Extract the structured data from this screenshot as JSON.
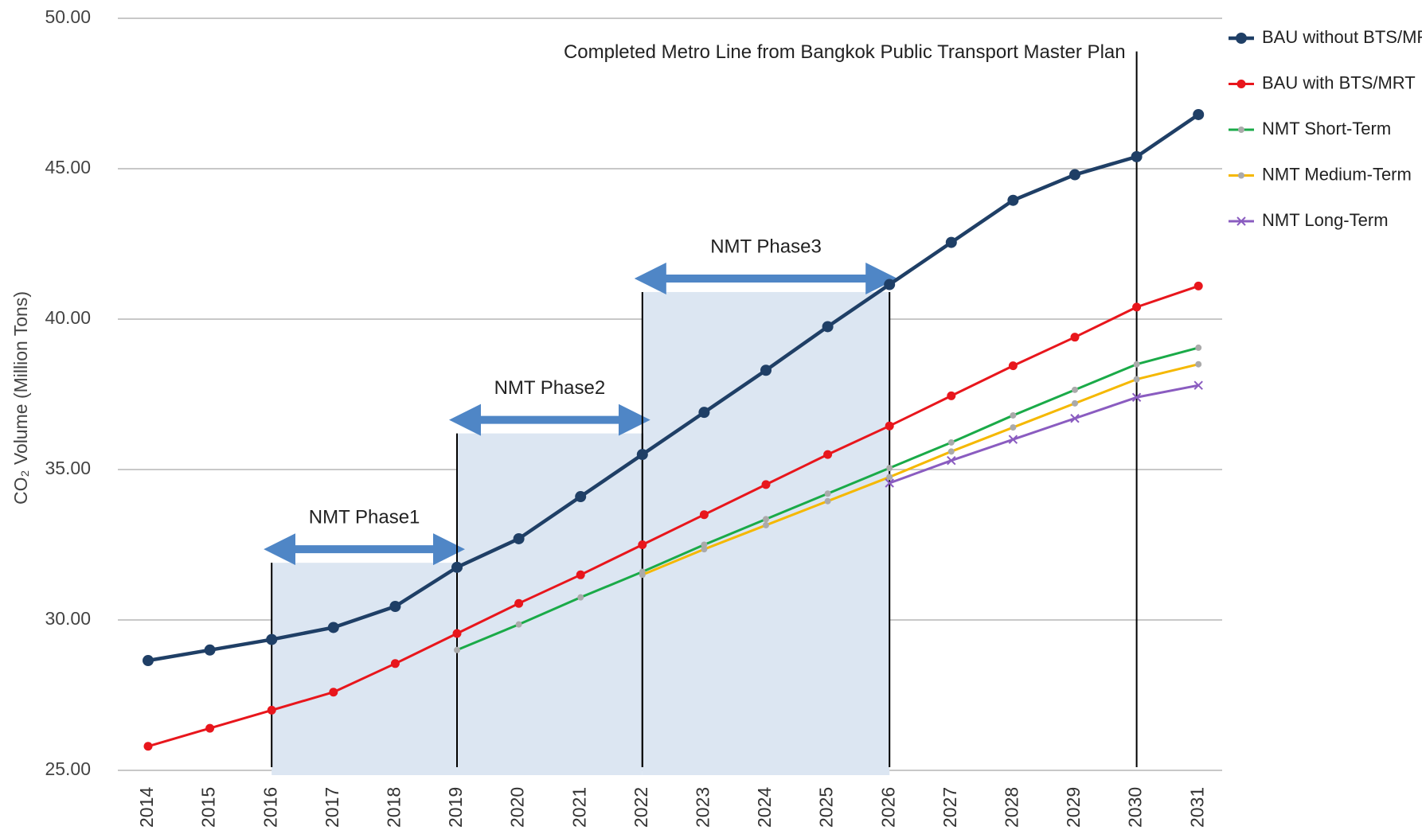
{
  "chart_data": {
    "type": "line",
    "y_label": "CO₂ Volume (Million Tons)",
    "categories": [
      "2014",
      "2015",
      "2016",
      "2017",
      "2018",
      "2019",
      "2020",
      "2021",
      "2022",
      "2023",
      "2024",
      "2025",
      "2026",
      "2027",
      "2028",
      "2029",
      "2030",
      "2031"
    ],
    "ylim": [
      25,
      50
    ],
    "yticks": [
      {
        "value": 25,
        "label": "25.00"
      },
      {
        "value": 30,
        "label": "30.00"
      },
      {
        "value": 35,
        "label": "35.00"
      },
      {
        "value": 40,
        "label": "40.00"
      },
      {
        "value": 45,
        "label": "45.00"
      },
      {
        "value": 50,
        "label": "50.00"
      }
    ],
    "grid": true,
    "legend": "right",
    "series": [
      {
        "name": "BAU without BTS/MRT",
        "color": "#1f3f66",
        "marker": "circle",
        "width": 4.5,
        "values": [
          28.65,
          29.0,
          29.35,
          29.75,
          30.45,
          31.75,
          32.7,
          34.1,
          35.5,
          36.9,
          38.3,
          39.75,
          41.15,
          42.55,
          43.95,
          44.8,
          45.4,
          46.8
        ]
      },
      {
        "name": "BAU with BTS/MRT",
        "color": "#e8161c",
        "marker": "circle",
        "width": 3,
        "values": [
          25.8,
          26.4,
          27.0,
          27.6,
          28.55,
          29.55,
          30.55,
          31.5,
          32.5,
          33.5,
          34.5,
          35.5,
          36.45,
          37.45,
          38.45,
          39.4,
          40.4,
          41.1
        ]
      },
      {
        "name": "NMT Short-Term",
        "color": "#1aaa48",
        "marker": "dot",
        "width": 3,
        "values": [
          null,
          null,
          null,
          null,
          null,
          29.0,
          29.85,
          30.75,
          31.6,
          32.5,
          33.35,
          34.2,
          35.05,
          35.9,
          36.8,
          37.65,
          38.5,
          39.05
        ]
      },
      {
        "name": "NMT Medium-Term",
        "color": "#f5b800",
        "marker": "dot",
        "width": 3,
        "values": [
          null,
          null,
          null,
          null,
          null,
          null,
          null,
          null,
          31.5,
          32.35,
          33.15,
          33.95,
          34.75,
          35.6,
          36.4,
          37.2,
          38.0,
          38.5
        ]
      },
      {
        "name": "NMT Long-Term",
        "color": "#8a5cc0",
        "marker": "x",
        "width": 3,
        "values": [
          null,
          null,
          null,
          null,
          null,
          null,
          null,
          null,
          null,
          null,
          null,
          null,
          34.55,
          35.3,
          36.0,
          36.7,
          37.4,
          37.8
        ]
      }
    ],
    "annotations": {
      "phases": [
        {
          "label": "NMT Phase1",
          "start": "2016",
          "end": "2019",
          "top": 31.9
        },
        {
          "label": "NMT Phase2",
          "start": "2019",
          "end": "2022",
          "top": 36.2
        },
        {
          "label": "NMT Phase3",
          "start": "2022",
          "end": "2026",
          "top": 40.9
        }
      ],
      "milestone": {
        "label": "Completed Metro Line from Bangkok Public Transport Master Plan",
        "at": "2030",
        "top": 48.9
      }
    }
  }
}
